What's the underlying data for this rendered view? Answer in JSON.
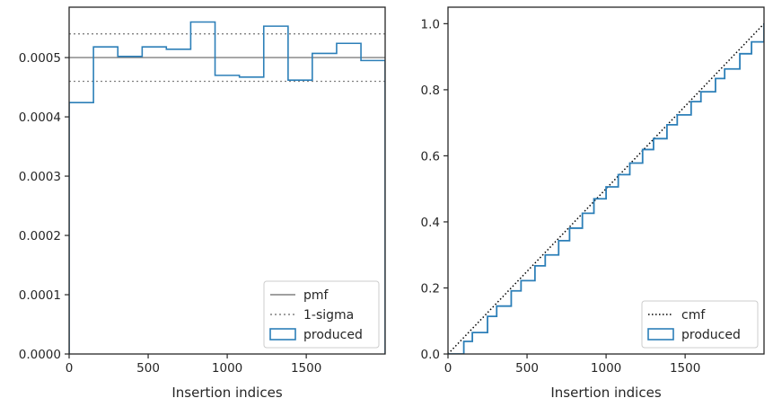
{
  "chart_data": [
    {
      "type": "step",
      "xlabel": "Insertion indices",
      "ylabel": "",
      "xlim": [
        0,
        1999
      ],
      "ylim": [
        0,
        0.000585
      ],
      "xticks": [
        0,
        500,
        1000,
        1500
      ],
      "yticks": [
        0,
        0.0001,
        0.0002,
        0.0003,
        0.0004,
        0.0005
      ],
      "xtick_labels": [
        "0",
        "500",
        "1000",
        "1500"
      ],
      "ytick_labels": [
        "0.0000",
        "0.0001",
        "0.0002",
        "0.0003",
        "0.0004",
        "0.0005"
      ],
      "hlines": [
        {
          "name": "pmf",
          "y": 0.0005,
          "style": "solid",
          "color": "#808080"
        },
        {
          "name": "1-sigma",
          "y": 0.00054,
          "style": "dotted",
          "color": "#808080"
        },
        {
          "name": "1-sigma",
          "y": 0.00046,
          "style": "dotted",
          "color": "#808080"
        }
      ],
      "histogram": {
        "name": "produced",
        "color": "#2c7fb8",
        "bin_edges": [
          0,
          154,
          308,
          462,
          615,
          769,
          923,
          1077,
          1231,
          1385,
          1538,
          1692,
          1846,
          1999
        ],
        "values": [
          0.000424,
          0.000518,
          0.000502,
          0.000518,
          0.000514,
          0.00056,
          0.00047,
          0.000467,
          0.000553,
          0.000462,
          0.000507,
          0.000524,
          0.000495
        ]
      },
      "legend": {
        "placement": "lower-right",
        "entries": [
          {
            "label": "pmf",
            "kind": "line",
            "style": "solid",
            "color": "#808080"
          },
          {
            "label": "1-sigma",
            "kind": "line",
            "style": "dotted",
            "color": "#808080"
          },
          {
            "label": "produced",
            "kind": "patch",
            "color": "#2c7fb8"
          }
        ]
      },
      "grid": false
    },
    {
      "type": "line",
      "xlabel": "Insertion indices",
      "ylabel": "",
      "xlim": [
        0,
        1999
      ],
      "ylim": [
        0,
        1.05
      ],
      "xticks": [
        0,
        500,
        1000,
        1500
      ],
      "yticks": [
        0.0,
        0.2,
        0.4,
        0.6,
        0.8,
        1.0
      ],
      "xtick_labels": [
        "0",
        "500",
        "1000",
        "1500"
      ],
      "ytick_labels": [
        "0.0",
        "0.2",
        "0.4",
        "0.6",
        "0.8",
        "1.0"
      ],
      "series": [
        {
          "name": "cmf",
          "style": "dotted",
          "color": "#000000",
          "x": [
            0,
            1999
          ],
          "y": [
            0.0,
            1.0
          ]
        },
        {
          "name": "produced",
          "style": "step",
          "color": "#2c7fb8",
          "x": [
            0,
            100,
            154,
            250,
            308,
            400,
            462,
            550,
            615,
            700,
            769,
            850,
            923,
            1000,
            1077,
            1150,
            1231,
            1300,
            1385,
            1450,
            1538,
            1600,
            1692,
            1750,
            1846,
            1920,
            1999
          ],
          "y": [
            0.0,
            0.038,
            0.065,
            0.114,
            0.145,
            0.191,
            0.222,
            0.267,
            0.3,
            0.343,
            0.381,
            0.426,
            0.47,
            0.506,
            0.543,
            0.578,
            0.619,
            0.652,
            0.694,
            0.724,
            0.764,
            0.794,
            0.834,
            0.863,
            0.909,
            0.945,
            1.0
          ]
        }
      ],
      "legend": {
        "placement": "lower-right",
        "entries": [
          {
            "label": "cmf",
            "kind": "line",
            "style": "dotted",
            "color": "#000000"
          },
          {
            "label": "produced",
            "kind": "patch",
            "color": "#2c7fb8"
          }
        ]
      },
      "grid": false
    }
  ]
}
